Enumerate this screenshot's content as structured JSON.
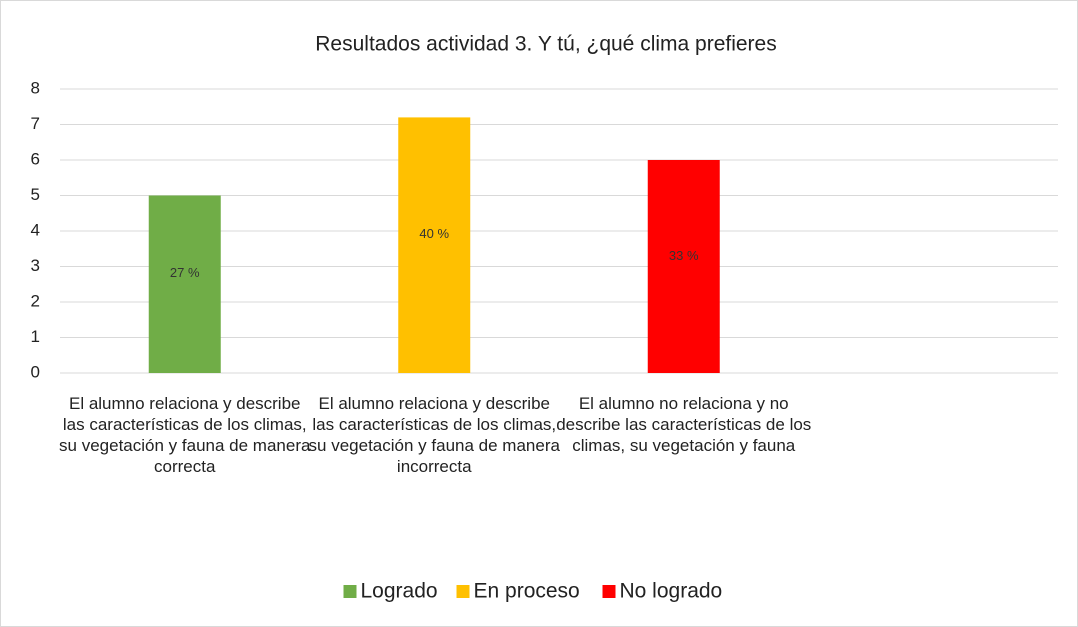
{
  "chart_data": {
    "type": "bar",
    "title": "Resultados actividad 3. Y tú, ¿qué clima prefieres",
    "categories": [
      "El alumno relaciona y describe las características de los climas, su vegetación y fauna de manera correcta",
      "El alumno relaciona y describe las características de los climas, su vegetación y fauna de manera incorrecta",
      "El alumno no relaciona y no describe las características de los climas, su vegetación y fauna",
      null
    ],
    "series": [
      {
        "name": "Logrado",
        "color": "#70ad47",
        "values": [
          5,
          null,
          null,
          null
        ],
        "value_labels": [
          "27 %",
          null,
          null,
          null
        ]
      },
      {
        "name": "En proceso",
        "color": "#ffc000",
        "values": [
          null,
          7.2,
          null,
          null
        ],
        "value_labels": [
          null,
          "40 %",
          null,
          null
        ]
      },
      {
        "name": "No logrado",
        "color": "#ff0000",
        "values": [
          null,
          null,
          6,
          null
        ],
        "value_labels": [
          null,
          null,
          "33 %",
          null
        ]
      }
    ],
    "ylim": [
      0,
      8
    ],
    "yticks": [
      0,
      1,
      2,
      3,
      4,
      5,
      6,
      7,
      8
    ],
    "grid": true,
    "legend": "bottom"
  }
}
